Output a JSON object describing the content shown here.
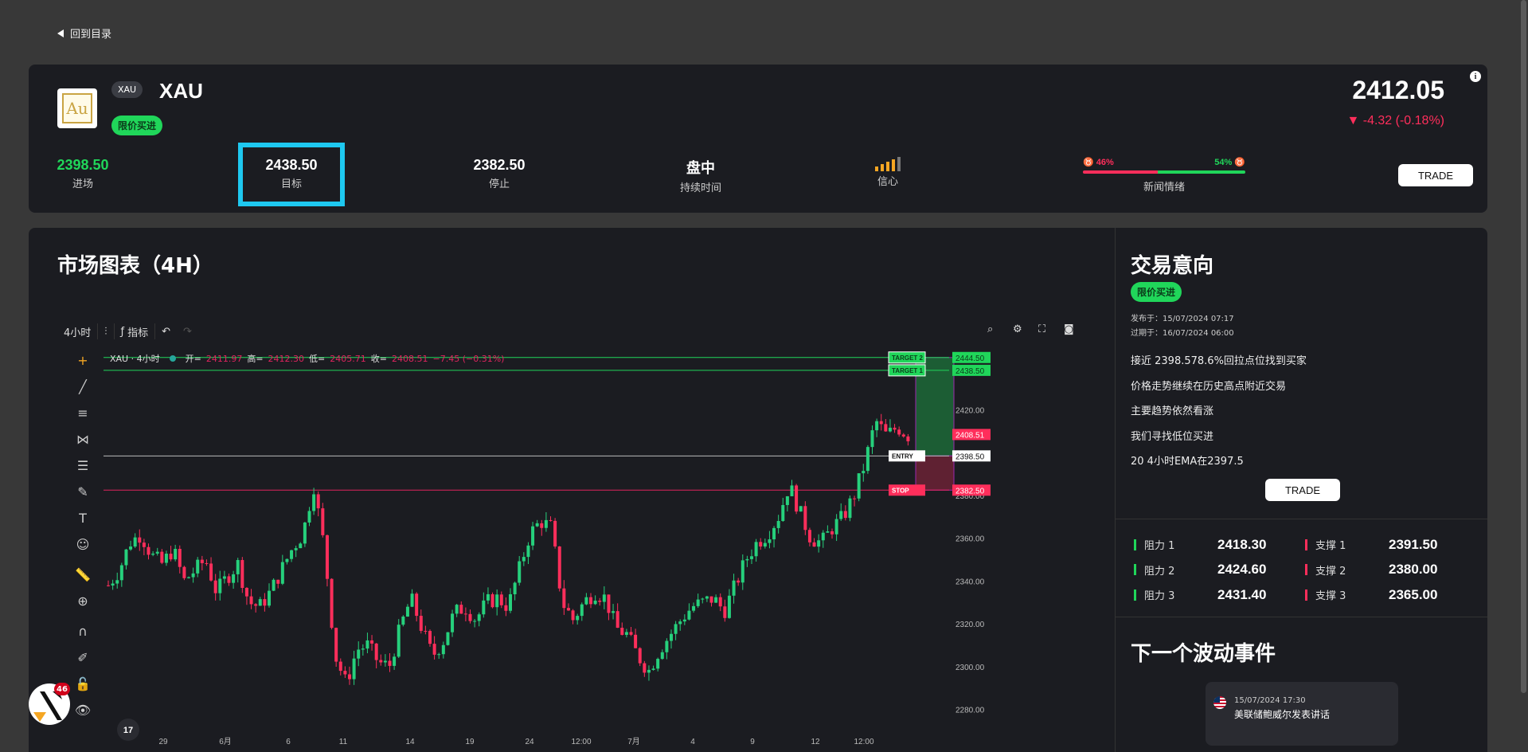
{
  "nav": {
    "back_label": "回到目录"
  },
  "asset": {
    "symbol_badge": "XAU",
    "name": "XAU",
    "logo_text": "Au",
    "order_type": "限价买进",
    "price": "2412.05",
    "change": "▼ -4.32 (-0.18%)"
  },
  "metrics": {
    "entry_value": "2398.50",
    "entry_label": "进场",
    "target_value": "2438.50",
    "target_label": "目标",
    "stop_value": "2382.50",
    "stop_label": "停止",
    "duration_value": "盘中",
    "duration_label": "持续时间",
    "confidence_label": "信心",
    "confidence_level": 4,
    "confidence_max": 5
  },
  "sentiment": {
    "bearish": "46%",
    "bullish": "54%",
    "bearish_pct": 46,
    "label": "新闻情绪"
  },
  "trade_label": "TRADE",
  "chart": {
    "title": "市场图表（4H）",
    "interval": "4小时",
    "indicators_label": "指标",
    "legend_title": "XAU · 4小时",
    "o_label": "开=",
    "o_val": "2411.97",
    "h_label": "高=",
    "h_val": "2412.30",
    "l_label": "低=",
    "l_val": "2405.71",
    "c_label": "收=",
    "c_val": "2408.51",
    "chg": "−7.45 (−0.31%)"
  },
  "chart_data": {
    "type": "candlestick",
    "y_ticks": [
      "2420.00",
      "2400.00",
      "2380.00",
      "2360.00",
      "2340.00",
      "2320.00",
      "2300.00",
      "2280.00"
    ],
    "x_ticks": [
      "29",
      "6月",
      "6",
      "11",
      "14",
      "19",
      "24",
      "12:00",
      "7月",
      "4",
      "9",
      "12",
      "12:00"
    ],
    "ylim": [
      2275,
      2450
    ],
    "levels": [
      {
        "name": "TARGET 2",
        "value": "2444.50",
        "color": "#20d65a"
      },
      {
        "name": "TARGET 1",
        "value": "2438.50",
        "color": "#20d65a"
      },
      {
        "name": "ENTRY",
        "value": "2398.50",
        "color": "#ffffff"
      },
      {
        "name": "STOP",
        "value": "2382.50",
        "color": "#ff2e5b"
      }
    ],
    "last_price": "2408.51"
  },
  "intent": {
    "title": "交易意向",
    "pill": "限价买进",
    "published": "发布于：15/07/2024 07:17",
    "expires": "过期于：16/07/2024 06:00",
    "bullets": [
      "接近 2398.578.6%回拉点位找到买家",
      "价格走势继续在历史高点附近交易",
      "主要趋势依然看涨",
      "我们寻找低位买进",
      "20 4小时EMA在2397.5"
    ]
  },
  "levels": [
    {
      "res_label": "阻力 1",
      "res_val": "2418.30",
      "sup_label": "支撑 1",
      "sup_val": "2391.50"
    },
    {
      "res_label": "阻力 2",
      "res_val": "2424.60",
      "sup_label": "支撑 2",
      "sup_val": "2380.00"
    },
    {
      "res_label": "阻力 3",
      "res_val": "2431.40",
      "sup_label": "支撑 3",
      "sup_val": "2365.00"
    }
  ],
  "next_event": {
    "title": "下一个波动事件",
    "date": "15/07/2024 17:30",
    "text": "美联储鲍威尔发表讲话"
  },
  "notification_count": "46",
  "colors": {
    "green": "#20d65a",
    "red": "#ff2e5b",
    "highlight": "#1ec8f0",
    "card": "#1b1c21"
  }
}
